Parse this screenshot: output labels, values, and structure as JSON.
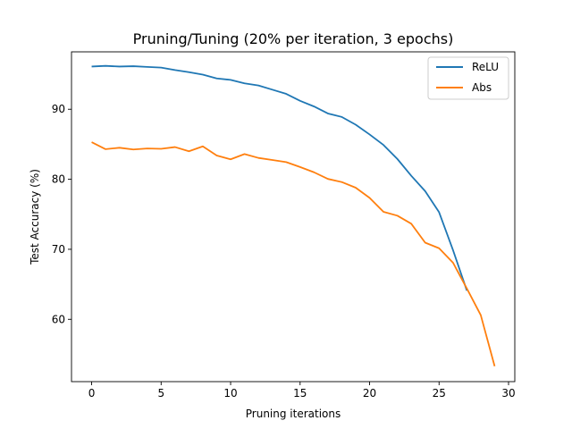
{
  "chart_data": {
    "type": "line",
    "title": "Pruning/Tuning (20% per iteration, 3 epochs)",
    "xlabel": "Pruning iterations",
    "ylabel": "Test Accuracy (%)",
    "xlim": [
      -1.45,
      30.45
    ],
    "ylim": [
      51.1,
      98.2
    ],
    "xticks": [
      0,
      5,
      10,
      15,
      20,
      25,
      30
    ],
    "yticks": [
      60,
      70,
      80,
      90
    ],
    "grid": false,
    "legend": "top-right",
    "series": [
      {
        "name": "ReLU",
        "color": "#1f77b4",
        "x": [
          0,
          1,
          2,
          3,
          4,
          5,
          6,
          7,
          8,
          9,
          10,
          11,
          12,
          13,
          14,
          15,
          16,
          17,
          18,
          19,
          20,
          21,
          22,
          23,
          24,
          25,
          26,
          27
        ],
        "values": [
          96.1,
          96.2,
          96.1,
          96.15,
          96.05,
          95.95,
          95.6,
          95.3,
          94.95,
          94.4,
          94.2,
          93.7,
          93.4,
          92.8,
          92.2,
          91.2,
          90.4,
          89.4,
          88.9,
          87.8,
          86.4,
          84.9,
          82.9,
          80.5,
          78.3,
          75.3,
          69.9,
          64.1
        ]
      },
      {
        "name": "Abs",
        "color": "#ff7f0e",
        "x": [
          0,
          1,
          2,
          3,
          4,
          5,
          6,
          7,
          8,
          9,
          10,
          11,
          12,
          13,
          14,
          15,
          16,
          17,
          18,
          19,
          20,
          21,
          22,
          23,
          24,
          25,
          26,
          27,
          28,
          29
        ],
        "values": [
          85.3,
          84.3,
          84.5,
          84.25,
          84.4,
          84.35,
          84.6,
          84.0,
          84.7,
          83.4,
          82.85,
          83.6,
          83.05,
          82.75,
          82.45,
          81.75,
          81.0,
          80.05,
          79.6,
          78.8,
          77.35,
          75.35,
          74.8,
          73.65,
          70.95,
          70.15,
          68.1,
          64.4,
          60.6,
          53.3
        ]
      }
    ]
  }
}
